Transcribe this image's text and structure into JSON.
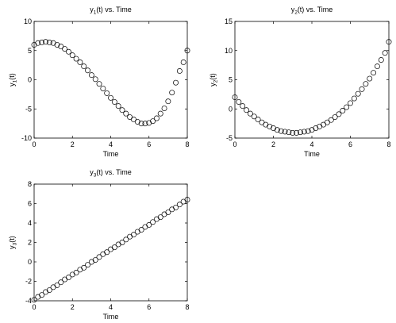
{
  "chart_data": [
    {
      "type": "scatter",
      "title": {
        "pre": "y",
        "sub": "1",
        "post": "(t) vs. Time"
      },
      "xlabel": "Time",
      "ylabel": {
        "pre": "y",
        "sub": "1",
        "post": "(t)"
      },
      "xlim": [
        0,
        8
      ],
      "ylim": [
        -10,
        10
      ],
      "xticks": [
        0,
        2,
        4,
        6,
        8
      ],
      "yticks": [
        -10,
        -5,
        0,
        5,
        10
      ],
      "grid": false,
      "marker": "open-circle",
      "color": "#000000",
      "x": [
        0,
        0.2,
        0.4,
        0.6,
        0.8,
        1,
        1.2,
        1.4,
        1.6,
        1.8,
        2,
        2.2,
        2.4,
        2.6,
        2.8,
        3,
        3.2,
        3.4,
        3.6,
        3.8,
        4,
        4.2,
        4.4,
        4.6,
        4.8,
        5,
        5.2,
        5.4,
        5.6,
        5.8,
        6,
        6.2,
        6.4,
        6.6,
        6.8,
        7,
        7.2,
        7.4,
        7.6,
        7.8,
        8
      ],
      "y": [
        6.0,
        6.3,
        6.4,
        6.5,
        6.4,
        6.3,
        6.0,
        5.7,
        5.3,
        4.8,
        4.2,
        3.6,
        3.0,
        2.3,
        1.6,
        0.8,
        0.1,
        -0.7,
        -1.5,
        -2.3,
        -3.1,
        -3.8,
        -4.5,
        -5.2,
        -5.8,
        -6.4,
        -6.8,
        -7.2,
        -7.5,
        -7.5,
        -7.4,
        -7.1,
        -6.6,
        -5.8,
        -4.9,
        -3.7,
        -2.2,
        -0.5,
        1.5,
        3.0,
        5.0
      ]
    },
    {
      "type": "scatter",
      "title": {
        "pre": "y",
        "sub": "2",
        "post": "(t) vs. Time"
      },
      "xlabel": "Time",
      "ylabel": {
        "pre": "y",
        "sub": "2",
        "post": "(t)"
      },
      "xlim": [
        0,
        8
      ],
      "ylim": [
        -5,
        15
      ],
      "xticks": [
        0,
        2,
        4,
        6,
        8
      ],
      "yticks": [
        -5,
        0,
        5,
        10,
        15
      ],
      "grid": false,
      "marker": "open-circle",
      "color": "#000000",
      "x": [
        0,
        0.2,
        0.4,
        0.6,
        0.8,
        1,
        1.2,
        1.4,
        1.6,
        1.8,
        2,
        2.2,
        2.4,
        2.6,
        2.8,
        3,
        3.2,
        3.4,
        3.6,
        3.8,
        4,
        4.2,
        4.4,
        4.6,
        4.8,
        5,
        5.2,
        5.4,
        5.6,
        5.8,
        6,
        6.2,
        6.4,
        6.6,
        6.8,
        7,
        7.2,
        7.4,
        7.6,
        7.8,
        8
      ],
      "y": [
        2.0,
        1.2,
        0.5,
        -0.2,
        -0.8,
        -1.3,
        -1.8,
        -2.3,
        -2.7,
        -3.0,
        -3.3,
        -3.6,
        -3.8,
        -3.9,
        -4.0,
        -4.1,
        -4.1,
        -4.0,
        -3.9,
        -3.8,
        -3.6,
        -3.3,
        -3.0,
        -2.7,
        -2.3,
        -1.9,
        -1.4,
        -0.9,
        -0.3,
        0.3,
        1.0,
        1.8,
        2.6,
        3.4,
        4.3,
        5.2,
        6.2,
        7.3,
        8.4,
        9.6,
        11.5
      ]
    },
    {
      "type": "scatter",
      "title": {
        "pre": "y",
        "sub": "3",
        "post": "(t) vs. Time"
      },
      "xlabel": "Time",
      "ylabel": {
        "pre": "y",
        "sub": "3",
        "post": "(t)"
      },
      "xlim": [
        0,
        8
      ],
      "ylim": [
        -4,
        8
      ],
      "xticks": [
        0,
        2,
        4,
        6,
        8
      ],
      "yticks": [
        -4,
        -2,
        0,
        2,
        4,
        6,
        8
      ],
      "grid": false,
      "marker": "open-circle",
      "color": "#000000",
      "x": [
        0,
        0.2,
        0.4,
        0.6,
        0.8,
        1,
        1.2,
        1.4,
        1.6,
        1.8,
        2,
        2.2,
        2.4,
        2.6,
        2.8,
        3,
        3.2,
        3.4,
        3.6,
        3.8,
        4,
        4.2,
        4.4,
        4.6,
        4.8,
        5,
        5.2,
        5.4,
        5.6,
        5.8,
        6,
        6.2,
        6.4,
        6.6,
        6.8,
        7,
        7.2,
        7.4,
        7.6,
        7.8,
        8
      ],
      "y": [
        -3.9,
        -3.6,
        -3.4,
        -3.1,
        -2.9,
        -2.6,
        -2.4,
        -2.1,
        -1.8,
        -1.6,
        -1.3,
        -1.1,
        -0.8,
        -0.6,
        -0.3,
        0.0,
        0.2,
        0.5,
        0.8,
        1.0,
        1.3,
        1.5,
        1.8,
        2.0,
        2.3,
        2.6,
        2.8,
        3.1,
        3.3,
        3.6,
        3.8,
        4.1,
        4.4,
        4.6,
        4.9,
        5.1,
        5.4,
        5.6,
        5.9,
        6.2,
        6.4
      ]
    }
  ]
}
